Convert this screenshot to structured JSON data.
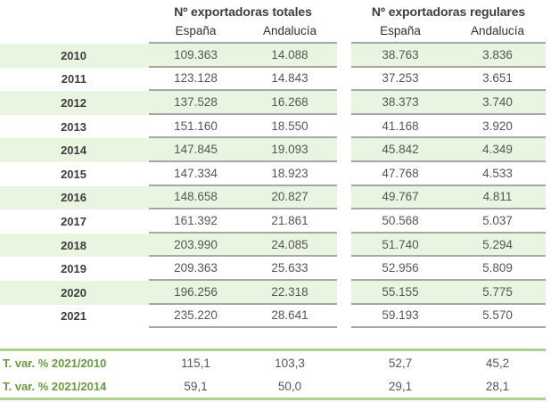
{
  "colors": {
    "row_stripe": "#e9f5e1",
    "grid_line": "#a6a6a6",
    "accent_line": "#abd08f",
    "variation_label_green": "#6a9a41",
    "header_text": "#3d3d3d",
    "value_text": "#565656"
  },
  "table": {
    "group_headers": [
      "Nº exportadoras totales",
      "Nº exportadoras regulares"
    ],
    "col_headers": [
      "España",
      "Andalucía",
      "España",
      "Andalucía"
    ],
    "rows": [
      {
        "year": "2010",
        "totales_espana": "109.363",
        "totales_andalucia": "14.088",
        "regulares_espana": "38.763",
        "regulares_andalucia": "3.836"
      },
      {
        "year": "2011",
        "totales_espana": "123.128",
        "totales_andalucia": "14.843",
        "regulares_espana": "37.253",
        "regulares_andalucia": "3.651"
      },
      {
        "year": "2012",
        "totales_espana": "137.528",
        "totales_andalucia": "16.268",
        "regulares_espana": "38.373",
        "regulares_andalucia": "3.740"
      },
      {
        "year": "2013",
        "totales_espana": "151.160",
        "totales_andalucia": "18.550",
        "regulares_espana": "41.168",
        "regulares_andalucia": "3.920"
      },
      {
        "year": "2014",
        "totales_espana": "147.845",
        "totales_andalucia": "19.093",
        "regulares_espana": "45.842",
        "regulares_andalucia": "4.349"
      },
      {
        "year": "2015",
        "totales_espana": "147.334",
        "totales_andalucia": "18.923",
        "regulares_espana": "47.768",
        "regulares_andalucia": "4.533"
      },
      {
        "year": "2016",
        "totales_espana": "148.658",
        "totales_andalucia": "20.827",
        "regulares_espana": "49.767",
        "regulares_andalucia": "4.811"
      },
      {
        "year": "2017",
        "totales_espana": "161.392",
        "totales_andalucia": "21.861",
        "regulares_espana": "50.568",
        "regulares_andalucia": "5.037"
      },
      {
        "year": "2018",
        "totales_espana": "203.990",
        "totales_andalucia": "24.085",
        "regulares_espana": "51.740",
        "regulares_andalucia": "5.294"
      },
      {
        "year": "2019",
        "totales_espana": "209.363",
        "totales_andalucia": "25.633",
        "regulares_espana": "52.956",
        "regulares_andalucia": "5.809"
      },
      {
        "year": "2020",
        "totales_espana": "196.256",
        "totales_andalucia": "22.318",
        "regulares_espana": "55.155",
        "regulares_andalucia": "5.775"
      },
      {
        "year": "2021",
        "totales_espana": "235.220",
        "totales_andalucia": "28.641",
        "regulares_espana": "59.193",
        "regulares_andalucia": "5.570"
      }
    ],
    "variation_rows": [
      {
        "label": "T. var. % 2021/2010",
        "totales_espana": "115,1",
        "totales_andalucia": "103,3",
        "regulares_espana": "52,7",
        "regulares_andalucia": "45,2"
      },
      {
        "label": "T. var. % 2021/2014",
        "totales_espana": "59,1",
        "totales_andalucia": "50,0",
        "regulares_espana": "29,1",
        "regulares_andalucia": "28,1"
      }
    ]
  }
}
